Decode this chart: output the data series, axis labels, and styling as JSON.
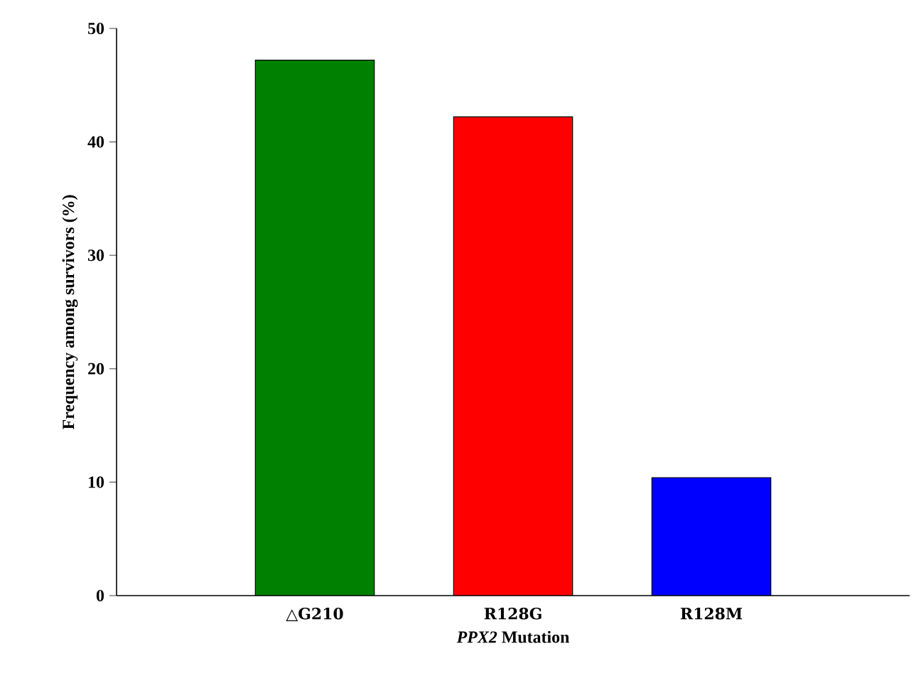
{
  "chart_data": {
    "type": "bar",
    "xlabel": "*PPX2* Mutation",
    "ylabel": "Frequency among survivors (%)",
    "categories": [
      "△G210",
      "R128G",
      "R128M"
    ],
    "values": [
      47.2,
      42.2,
      10.4
    ],
    "colors": [
      "#008000",
      "#ff0000",
      "#0000ff"
    ],
    "ylim": [
      0,
      50
    ],
    "yticks": [
      0,
      10,
      20,
      30,
      40,
      50
    ]
  }
}
